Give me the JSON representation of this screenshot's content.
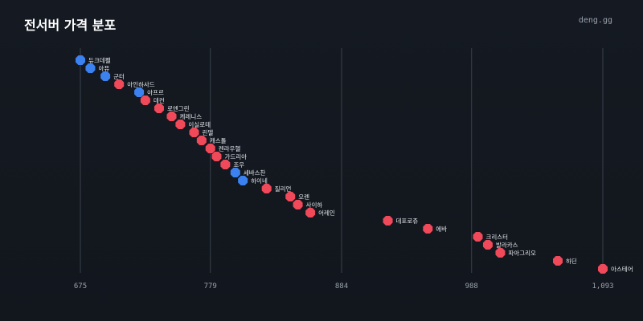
{
  "title": "전서버 가격 분포",
  "site": "deng.gg",
  "colors": {
    "background": "#151a22",
    "red": "#f0495a",
    "blue": "#3b82f0",
    "grid": "#3a414b",
    "tick_text": "#9aa3ad"
  },
  "chart_data": {
    "type": "scatter",
    "title": "전서버 가격 분포",
    "xlabel": "",
    "ylabel": "",
    "xlim": [
      675,
      1093
    ],
    "xticks": [
      675,
      779,
      884,
      988,
      1093
    ],
    "xtick_labels": [
      "675",
      "779",
      "884",
      "988",
      "1,093"
    ],
    "grid": "vertical",
    "points": [
      {
        "label": "듀크데펠",
        "x": 675,
        "color": "blue"
      },
      {
        "label": "아퓨",
        "x": 683,
        "color": "blue"
      },
      {
        "label": "군터",
        "x": 695,
        "color": "blue"
      },
      {
        "label": "아인하사드",
        "x": 706,
        "color": "red"
      },
      {
        "label": "아프르",
        "x": 722,
        "color": "blue"
      },
      {
        "label": "데컨",
        "x": 727,
        "color": "red"
      },
      {
        "label": "로엔그린",
        "x": 738,
        "color": "red"
      },
      {
        "label": "케레니스",
        "x": 748,
        "color": "red"
      },
      {
        "label": "이실로테",
        "x": 755,
        "color": "red"
      },
      {
        "label": "린델",
        "x": 766,
        "color": "red"
      },
      {
        "label": "캐스톨",
        "x": 772,
        "color": "red"
      },
      {
        "label": "켄라우헬",
        "x": 779,
        "color": "red"
      },
      {
        "label": "가드리아",
        "x": 784,
        "color": "red"
      },
      {
        "label": "조우",
        "x": 791,
        "color": "red"
      },
      {
        "label": "세바스찬",
        "x": 799,
        "color": "blue"
      },
      {
        "label": "하이네",
        "x": 805,
        "color": "blue"
      },
      {
        "label": "질리언",
        "x": 824,
        "color": "red"
      },
      {
        "label": "오렌",
        "x": 843,
        "color": "red"
      },
      {
        "label": "사이하",
        "x": 849,
        "color": "red"
      },
      {
        "label": "어레인",
        "x": 859,
        "color": "red"
      },
      {
        "label": "데포로쥬",
        "x": 921,
        "color": "red"
      },
      {
        "label": "에바",
        "x": 953,
        "color": "red"
      },
      {
        "label": "크리스터",
        "x": 993,
        "color": "red"
      },
      {
        "label": "발라카스",
        "x": 1001,
        "color": "red"
      },
      {
        "label": "파아그리오",
        "x": 1011,
        "color": "red"
      },
      {
        "label": "하딘",
        "x": 1057,
        "color": "red"
      },
      {
        "label": "아스테어",
        "x": 1093,
        "color": "red"
      }
    ]
  }
}
